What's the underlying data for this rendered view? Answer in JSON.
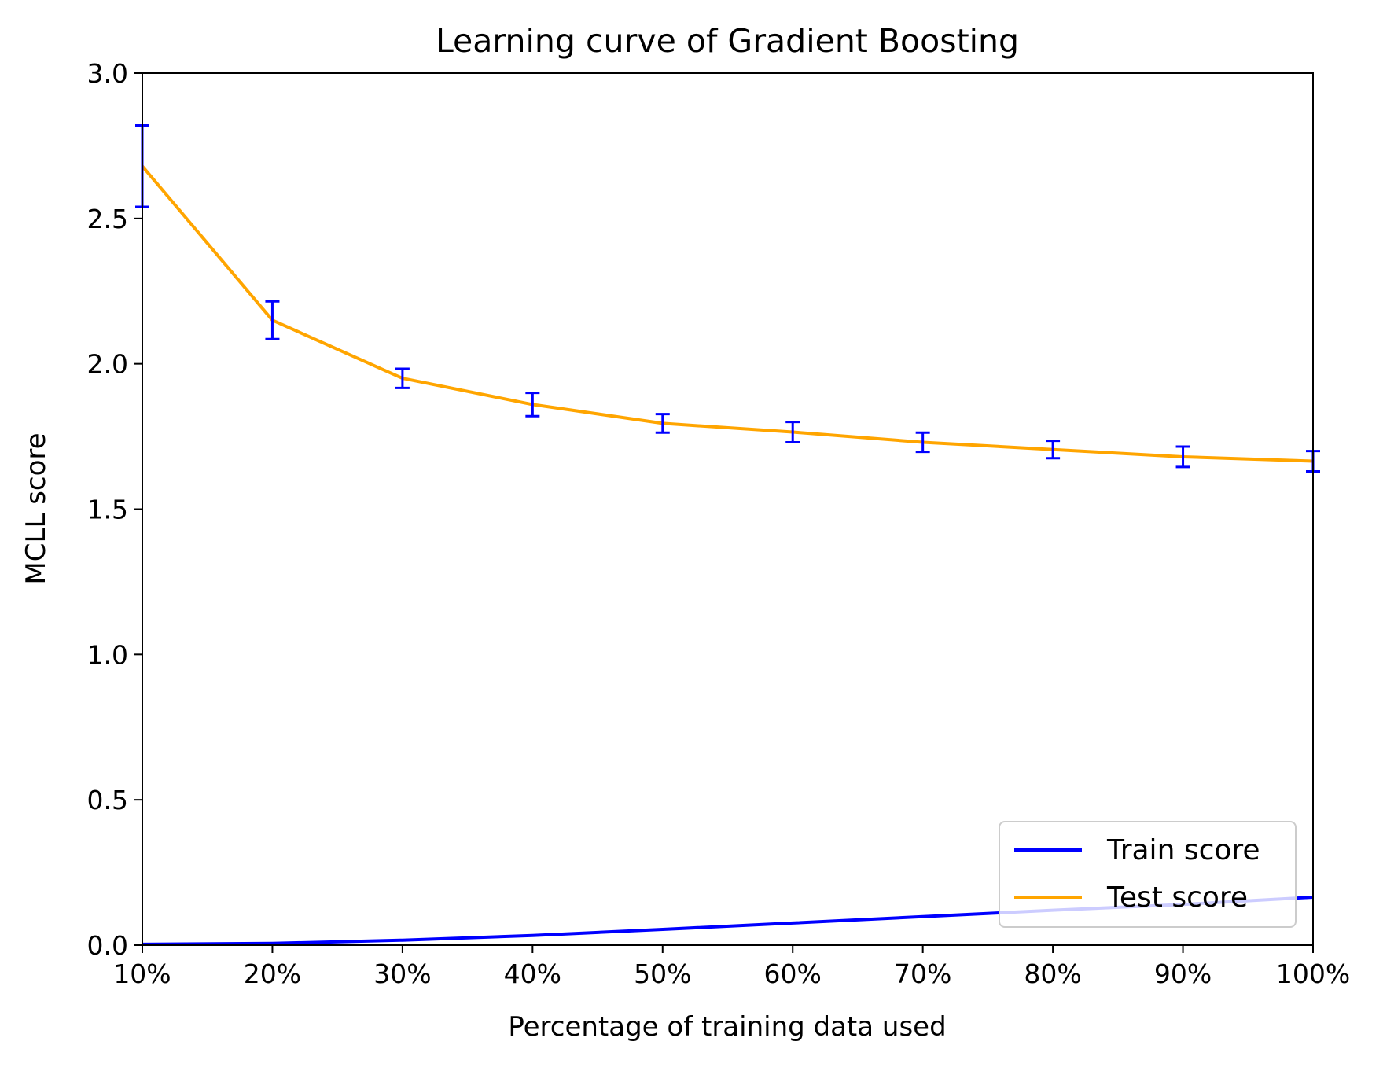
{
  "chart_data": {
    "type": "line",
    "title": "Learning curve of Gradient Boosting",
    "xlabel": "Percentage of training data used",
    "ylabel": "MCLL score",
    "x": [
      10,
      20,
      30,
      40,
      50,
      60,
      70,
      80,
      90,
      100
    ],
    "x_tick_labels": [
      "10%",
      "20%",
      "30%",
      "40%",
      "50%",
      "60%",
      "70%",
      "80%",
      "90%",
      "100%"
    ],
    "xlim": [
      10,
      100
    ],
    "ylim": [
      0,
      3.0
    ],
    "y_ticks": [
      0.0,
      0.5,
      1.0,
      1.5,
      2.0,
      2.5,
      3.0
    ],
    "y_tick_labels": [
      "0.0",
      "0.5",
      "1.0",
      "1.5",
      "2.0",
      "2.5",
      "3.0"
    ],
    "grid": false,
    "legend_position": "lower right",
    "series": [
      {
        "name": "Train score",
        "color": "#0000ff",
        "values": [
          0.003,
          0.006,
          0.017,
          0.033,
          0.054,
          0.076,
          0.098,
          0.12,
          0.14,
          0.165
        ]
      },
      {
        "name": "Test score",
        "color": "#ffa500",
        "values": [
          2.68,
          2.15,
          1.95,
          1.86,
          1.795,
          1.765,
          1.73,
          1.705,
          1.68,
          1.665
        ],
        "error": [
          0.14,
          0.065,
          0.033,
          0.04,
          0.032,
          0.035,
          0.033,
          0.03,
          0.035,
          0.035
        ],
        "error_color": "#0000ff"
      }
    ]
  }
}
